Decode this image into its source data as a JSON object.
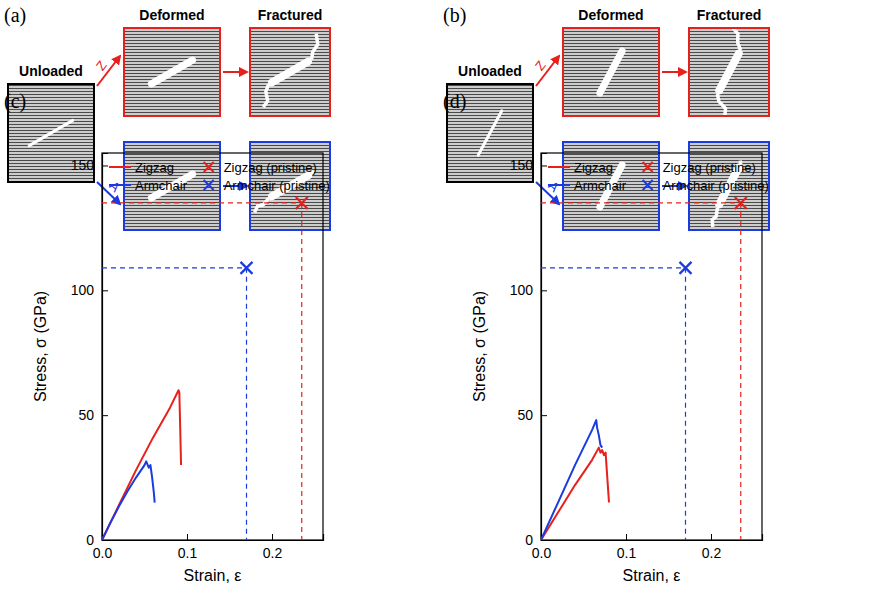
{
  "diagrams": [
    {
      "label": "(a)",
      "stages": [
        "Unloaded",
        "Deformed",
        "Fractured"
      ],
      "paths": [
        {
          "label": "Z",
          "color": "#e8201c"
        },
        {
          "label": "A",
          "color": "#1a3be0"
        }
      ]
    },
    {
      "label": "(b)",
      "stages": [
        "Unloaded",
        "Deformed",
        "Fractured"
      ],
      "paths": [
        {
          "label": "Z",
          "color": "#e8201c"
        },
        {
          "label": "A",
          "color": "#1a3be0"
        }
      ]
    }
  ],
  "chart_data": [
    {
      "type": "line",
      "title": "(c)",
      "x_label": "Strain, ε",
      "y_label": "Stress, σ (GPa)",
      "xlim": [
        0,
        0.26
      ],
      "ylim": [
        0,
        155
      ],
      "xticks": [
        {
          "value": 0,
          "label": "0.0"
        },
        0.1,
        0.2
      ],
      "yticks": [
        0,
        50,
        100,
        150
      ],
      "legend": "upper left",
      "series": [
        {
          "name": "Zigzag",
          "type": "line",
          "color": "#e8201c",
          "x": [
            0,
            0.02,
            0.04,
            0.06,
            0.08,
            0.09,
            0.091,
            0.092,
            0.093
          ],
          "values": [
            0,
            14,
            28,
            41,
            53,
            60,
            59,
            45,
            30
          ]
        },
        {
          "name": "Armchair",
          "type": "line",
          "color": "#1a3be0",
          "x": [
            0,
            0.01,
            0.02,
            0.03,
            0.04,
            0.05,
            0.052,
            0.055,
            0.057,
            0.059,
            0.061,
            0.062
          ],
          "values": [
            0,
            7,
            13.5,
            19.5,
            25,
            30,
            31.5,
            29,
            30,
            25,
            19,
            15
          ]
        },
        {
          "name": "Zigzag (pristine)",
          "type": "scatter",
          "marker": "x",
          "line_style": "dashed",
          "color": "#e8201c",
          "x": [
            0.235
          ],
          "values": [
            135
          ]
        },
        {
          "name": "Armchair (pristine)",
          "type": "scatter",
          "marker": "x",
          "line_style": "dashed",
          "color": "#1a3be0",
          "x": [
            0.17
          ],
          "values": [
            109
          ]
        }
      ]
    },
    {
      "type": "line",
      "title": "(d)",
      "x_label": "Strain, ε",
      "y_label": "Stress, σ (GPa)",
      "xlim": [
        0,
        0.26
      ],
      "ylim": [
        0,
        155
      ],
      "xticks": [
        {
          "value": 0,
          "label": "0.0"
        },
        0.1,
        0.2
      ],
      "yticks": [
        0,
        50,
        100,
        150
      ],
      "legend": "upper left",
      "series": [
        {
          "name": "Zigzag",
          "type": "line",
          "color": "#e8201c",
          "x": [
            0,
            0.02,
            0.04,
            0.06,
            0.068,
            0.07,
            0.072,
            0.074,
            0.076,
            0.078,
            0.079,
            0.08
          ],
          "values": [
            0,
            11,
            22,
            32,
            37,
            35,
            36,
            34,
            35,
            25,
            20,
            15
          ]
        },
        {
          "name": "Armchair",
          "type": "line",
          "color": "#1a3be0",
          "x": [
            0,
            0.02,
            0.04,
            0.06,
            0.065,
            0.066,
            0.068,
            0.07,
            0.072
          ],
          "values": [
            0,
            15,
            30,
            44,
            48,
            45,
            42,
            38,
            37
          ]
        },
        {
          "name": "Zigzag (pristine)",
          "type": "scatter",
          "marker": "x",
          "line_style": "dashed",
          "color": "#e8201c",
          "x": [
            0.235
          ],
          "values": [
            135
          ]
        },
        {
          "name": "Armchair (pristine)",
          "type": "scatter",
          "marker": "x",
          "line_style": "dashed",
          "color": "#1a3be0",
          "x": [
            0.17
          ],
          "values": [
            109
          ]
        }
      ]
    }
  ]
}
